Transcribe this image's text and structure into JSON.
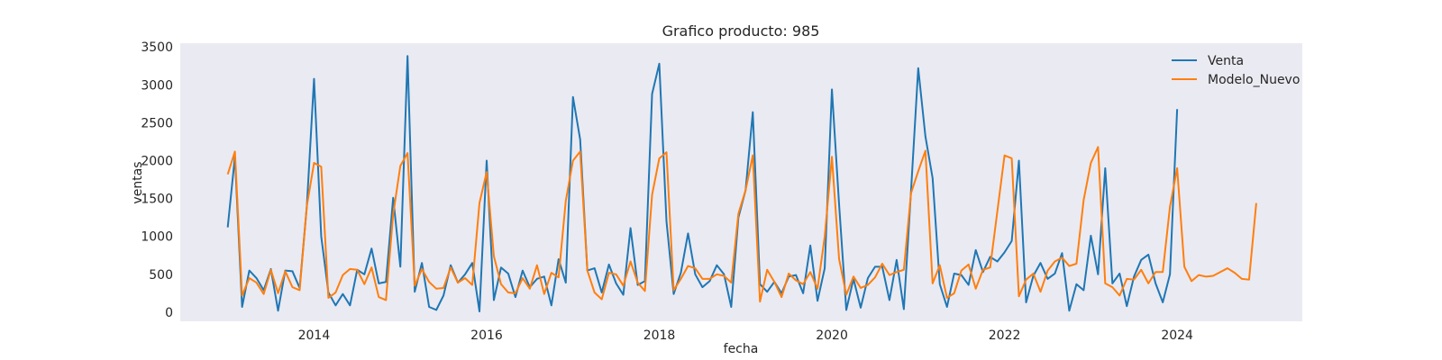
{
  "chart_data": {
    "type": "line",
    "title": "Grafico producto: 985",
    "xlabel": "fecha",
    "ylabel": "ventas",
    "xlim": [
      2012.45,
      2025.45
    ],
    "ylim": [
      -120,
      3550
    ],
    "x_ticks": [
      "2014",
      "2016",
      "2018",
      "2020",
      "2022",
      "2024"
    ],
    "y_ticks": [
      "0",
      "500",
      "1000",
      "1500",
      "2000",
      "2500",
      "3000",
      "3500"
    ],
    "grid": false,
    "legend": "top-right",
    "series": [
      {
        "name": "Venta",
        "color": "#1f77b4",
        "start": "2013-01",
        "values": [
          1120,
          2050,
          70,
          550,
          450,
          290,
          570,
          20,
          550,
          540,
          320,
          1400,
          3080,
          1000,
          260,
          90,
          240,
          90,
          560,
          500,
          840,
          380,
          400,
          1510,
          600,
          3380,
          270,
          650,
          70,
          30,
          220,
          620,
          390,
          500,
          650,
          10,
          2000,
          160,
          590,
          510,
          200,
          550,
          330,
          440,
          470,
          90,
          700,
          390,
          2840,
          2280,
          550,
          580,
          260,
          630,
          380,
          230,
          1110,
          360,
          410,
          2880,
          3280,
          1200,
          240,
          520,
          1040,
          500,
          330,
          410,
          620,
          500,
          70,
          1250,
          1610,
          2640,
          370,
          270,
          400,
          250,
          470,
          490,
          250,
          880,
          150,
          580,
          2940,
          1420,
          30,
          440,
          60,
          450,
          600,
          600,
          160,
          690,
          40,
          1600,
          3220,
          2320,
          1770,
          370,
          70,
          510,
          490,
          360,
          820,
          530,
          730,
          670,
          790,
          940,
          2000,
          130,
          480,
          650,
          440,
          510,
          780,
          20,
          370,
          290,
          1010,
          500,
          1900,
          380,
          510,
          80,
          470,
          690,
          760,
          380,
          130,
          500,
          2680
        ]
      },
      {
        "name": "Modelo_Nuevo",
        "color": "#ff7f0e",
        "start": "2013-01",
        "values": [
          1820,
          2120,
          220,
          450,
          390,
          240,
          560,
          250,
          540,
          330,
          290,
          1400,
          1970,
          1920,
          190,
          260,
          490,
          570,
          560,
          370,
          590,
          200,
          160,
          1290,
          1930,
          2100,
          350,
          570,
          400,
          310,
          320,
          590,
          390,
          450,
          360,
          1440,
          1850,
          740,
          370,
          260,
          250,
          450,
          310,
          620,
          240,
          520,
          460,
          1470,
          2000,
          2120,
          550,
          260,
          170,
          520,
          500,
          350,
          670,
          390,
          280,
          1550,
          2030,
          2110,
          290,
          440,
          610,
          580,
          440,
          440,
          500,
          480,
          390,
          1300,
          1610,
          2070,
          140,
          560,
          400,
          200,
          510,
          420,
          370,
          530,
          310,
          1000,
          2050,
          700,
          230,
          470,
          320,
          360,
          460,
          640,
          490,
          530,
          560,
          1570,
          1860,
          2130,
          380,
          620,
          190,
          250,
          550,
          630,
          310,
          560,
          590,
          1330,
          2070,
          2030,
          210,
          430,
          510,
          270,
          550,
          670,
          720,
          610,
          640,
          1480,
          1970,
          2180,
          380,
          330,
          220,
          440,
          430,
          560,
          380,
          530,
          530,
          1390,
          1900,
          600,
          410,
          490,
          470,
          480,
          530,
          580,
          520,
          440,
          430,
          1440
        ]
      }
    ]
  }
}
